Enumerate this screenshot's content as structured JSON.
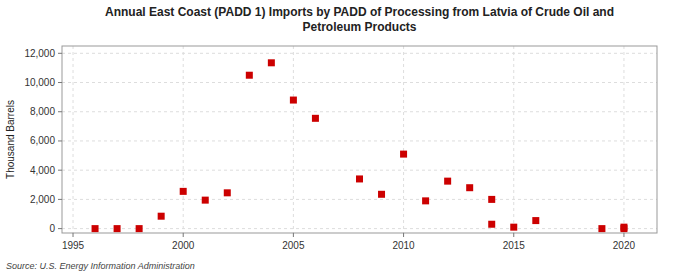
{
  "chart_data": {
    "type": "scatter",
    "title": "Annual East Coast (PADD 1) Imports by PADD of Processing from Latvia of Crude Oil and\nPetroleum Products",
    "y_label": "Thousand Barrels",
    "annotations": [
      "Source: U.S. Energy Information Administration"
    ],
    "color": "#cc0000",
    "marker": "square",
    "grid": true,
    "xlim": [
      1994.5,
      2021.5
    ],
    "ylim": [
      -300,
      12500
    ],
    "xticks": [
      1995,
      2000,
      2005,
      2010,
      2015,
      2020
    ],
    "yticks": [
      0,
      {
        "value": 2000,
        "label": "2,000"
      },
      {
        "value": 4000,
        "label": "4,000"
      },
      {
        "value": 6000,
        "label": "6,000"
      },
      {
        "value": 8000,
        "label": "8,000"
      },
      {
        "value": 10000,
        "label": "10,000"
      },
      {
        "value": 12000,
        "label": "12,000"
      }
    ],
    "x": [
      1996,
      1997,
      1998,
      1999,
      2000,
      2001,
      2002,
      2003,
      2004,
      2005,
      2006,
      2008,
      2009,
      2010,
      2011,
      2012,
      2013,
      2014,
      2014,
      2015,
      2016,
      2019,
      2020,
      2020
    ],
    "values": [
      0,
      0,
      0,
      850,
      2550,
      1950,
      2450,
      10500,
      11350,
      8800,
      7550,
      3400,
      2350,
      5100,
      1900,
      3250,
      2800,
      2000,
      300,
      100,
      550,
      0,
      0,
      100
    ]
  }
}
